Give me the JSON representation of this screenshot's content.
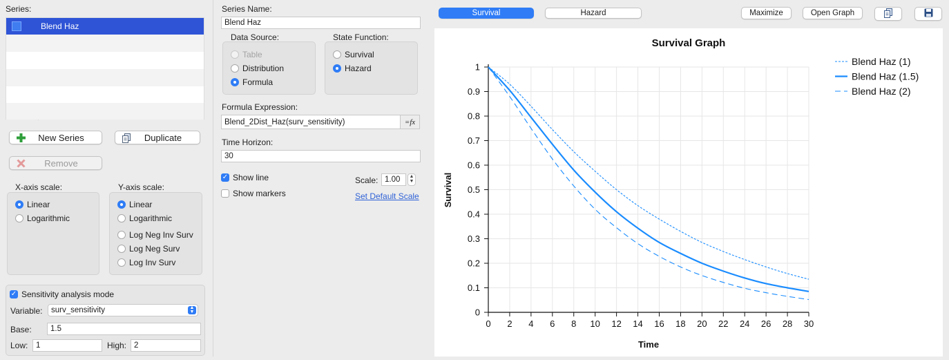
{
  "left": {
    "series_label": "Series:",
    "series_rows": [
      "Blend Haz",
      "",
      "",
      "",
      "",
      ""
    ],
    "new_series": "New Series",
    "duplicate": "Duplicate",
    "remove": "Remove",
    "xaxis_label": "X-axis scale:",
    "xaxis_options": [
      "Linear",
      "Logarithmic"
    ],
    "yaxis_label": "Y-axis scale:",
    "yaxis_options": [
      "Linear",
      "Logarithmic",
      "Log Neg Inv Surv",
      "Log Neg Surv",
      "Log Inv Surv"
    ],
    "sensitivity_label": "Sensitivity analysis mode",
    "variable_label": "Variable:",
    "variable_value": "surv_sensitivity",
    "base_label": "Base:",
    "base_value": "1.5",
    "low_label": "Low:",
    "low_value": "1",
    "high_label": "High:",
    "high_value": "2"
  },
  "middle": {
    "series_name_label": "Series Name:",
    "series_name_value": "Blend Haz",
    "data_source_label": "Data Source:",
    "data_source_options": [
      "Table",
      "Distribution",
      "Formula"
    ],
    "state_function_label": "State Function:",
    "state_function_options": [
      "Survival",
      "Hazard"
    ],
    "formula_label": "Formula Expression:",
    "formula_value": "Blend_2Dist_Haz(surv_sensitivity)",
    "fx_label": "=fx",
    "time_horizon_label": "Time Horizon:",
    "time_horizon_value": "30",
    "show_line": "Show line",
    "show_markers": "Show markers",
    "scale_label": "Scale:",
    "scale_value": "1.00",
    "set_default_scale": "Set Default Scale"
  },
  "toolbar": {
    "survival_tab": "Survival",
    "hazard_tab": "Hazard",
    "maximize": "Maximize",
    "open_graph": "Open Graph"
  },
  "colors": {
    "accent": "#2f7cf6",
    "series": "#1a8cff"
  },
  "chart_data": {
    "type": "line",
    "title": "Survival Graph",
    "xlabel": "Time",
    "ylabel": "Survival",
    "xlim": [
      0,
      30
    ],
    "ylim": [
      0,
      1
    ],
    "xticks": [
      "0",
      "2",
      "4",
      "6",
      "8",
      "10",
      "12",
      "14",
      "16",
      "18",
      "20",
      "22",
      "24",
      "26",
      "28",
      "30"
    ],
    "yticks": [
      "0",
      "0.1",
      "0.2",
      "0.3",
      "0.4",
      "0.5",
      "0.6",
      "0.7",
      "0.8",
      "0.9",
      "1"
    ],
    "grid": true,
    "legend_position": "top-right",
    "x": [
      0,
      2,
      4,
      6,
      8,
      10,
      12,
      14,
      16,
      18,
      20,
      22,
      24,
      26,
      28,
      30
    ],
    "series": [
      {
        "name": "Blend Haz (1)",
        "style": "short-dash",
        "values": [
          1.0,
          0.93,
          0.84,
          0.745,
          0.655,
          0.575,
          0.5,
          0.435,
          0.38,
          0.33,
          0.285,
          0.248,
          0.215,
          0.185,
          0.158,
          0.135
        ]
      },
      {
        "name": "Blend Haz (1.5)",
        "style": "solid",
        "values": [
          1.0,
          0.905,
          0.795,
          0.685,
          0.58,
          0.49,
          0.41,
          0.343,
          0.285,
          0.24,
          0.2,
          0.168,
          0.14,
          0.117,
          0.1,
          0.085
        ]
      },
      {
        "name": "Blend Haz (2)",
        "style": "long-dash",
        "values": [
          1.0,
          0.88,
          0.75,
          0.625,
          0.515,
          0.42,
          0.345,
          0.28,
          0.228,
          0.185,
          0.15,
          0.122,
          0.098,
          0.08,
          0.065,
          0.052
        ]
      }
    ]
  }
}
